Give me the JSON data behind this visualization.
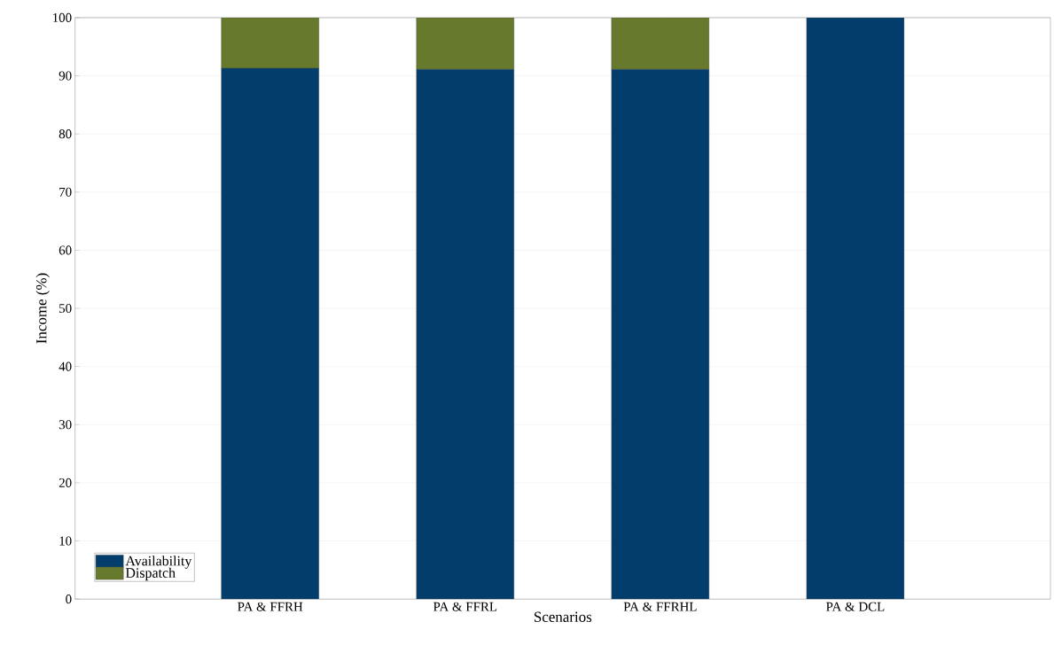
{
  "chart_data": {
    "type": "bar",
    "stacked": true,
    "xlabel": "Scenarios",
    "ylabel": "Income (%)",
    "categories": [
      "PA & FFRH",
      "PA & FFRL",
      "PA & FFRHL",
      "PA & DCL"
    ],
    "series": [
      {
        "name": "Availability",
        "color": "#023d6b",
        "values": [
          91.3,
          91.1,
          91.1,
          100
        ]
      },
      {
        "name": "Dispatch",
        "color": "#66792d",
        "values": [
          8.7,
          8.9,
          8.9,
          0
        ]
      }
    ],
    "ylim": [
      0,
      100
    ],
    "yticks": [
      0,
      10,
      20,
      30,
      40,
      50,
      60,
      70,
      80,
      90,
      100
    ],
    "grid": "y",
    "legend": "bottom left"
  }
}
